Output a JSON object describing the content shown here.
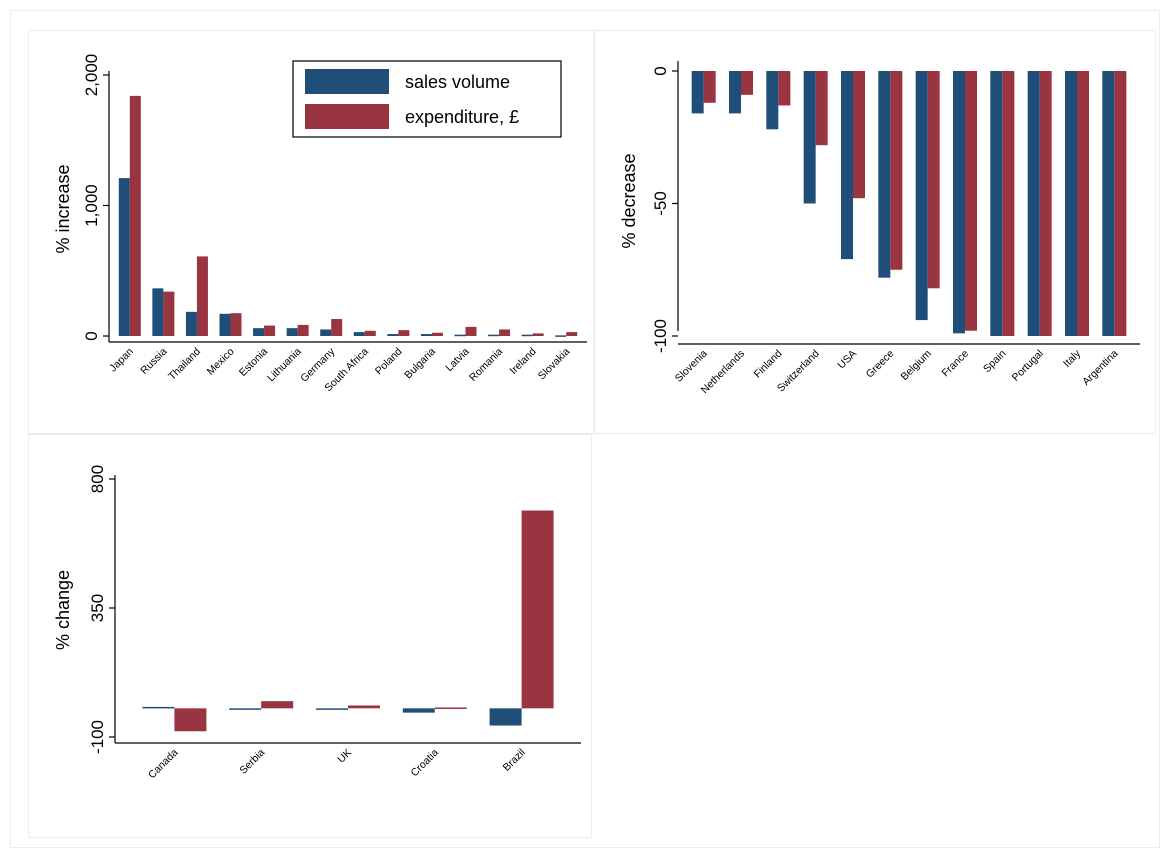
{
  "colors": {
    "sales_volume": "#1f4e79",
    "expenditure": "#993540",
    "axis": "#000000"
  },
  "legend": {
    "items": [
      "sales volume",
      "expenditure, £"
    ],
    "placement": "top-right of first chart"
  },
  "chart_data": [
    {
      "type": "bar",
      "ylabel": "% increase",
      "ylim": [
        0,
        2000
      ],
      "yticks": [
        "0",
        "1,000",
        "2,000"
      ],
      "ytick_values": [
        0,
        1000,
        2000
      ],
      "categories": [
        "Japan",
        "Russia",
        "Thailand",
        "Mexico",
        "Estonia",
        "Lithuania",
        "Germany",
        "South Africa",
        "Poland",
        "Bulgaria",
        "Latvia",
        "Romania",
        "Ireland",
        "Slovakia"
      ],
      "series": [
        {
          "name": "sales volume",
          "values": [
            1210,
            365,
            185,
            170,
            60,
            60,
            50,
            30,
            15,
            15,
            10,
            10,
            10,
            5
          ]
        },
        {
          "name": "expenditure, £",
          "values": [
            1840,
            340,
            610,
            175,
            80,
            85,
            130,
            40,
            45,
            25,
            70,
            50,
            20,
            30
          ]
        }
      ]
    },
    {
      "type": "bar",
      "ylabel": "% decrease",
      "ylim": [
        -100,
        0
      ],
      "yticks": [
        "0",
        "-50",
        "-100"
      ],
      "ytick_values": [
        0,
        -50,
        -100
      ],
      "categories": [
        "Slovenia",
        "Netherlands",
        "Finland",
        "Switzerland",
        "USA",
        "Greece",
        "Belgium",
        "France",
        "Spain",
        "Portugal",
        "Italy",
        "Argentina"
      ],
      "series": [
        {
          "name": "sales volume",
          "values": [
            -16,
            -16,
            -22,
            -50,
            -71,
            -78,
            -94,
            -99,
            -100,
            -100,
            -100,
            -100
          ]
        },
        {
          "name": "expenditure, £",
          "values": [
            -12,
            -9,
            -13,
            -28,
            -48,
            -75,
            -82,
            -98,
            -100,
            -100,
            -100,
            -100
          ]
        }
      ]
    },
    {
      "type": "bar",
      "ylabel": "% change",
      "ylim": [
        -100,
        800
      ],
      "yticks": [
        "-100",
        "350",
        "800"
      ],
      "ytick_values": [
        -100,
        350,
        800
      ],
      "categories": [
        "Canada",
        "Serbia",
        "UK",
        "Croatia",
        "Brazil"
      ],
      "series": [
        {
          "name": "sales volume",
          "values": [
            5,
            -3,
            -5,
            -15,
            -60
          ]
        },
        {
          "name": "expenditure, £",
          "values": [
            -80,
            25,
            10,
            3,
            690
          ]
        }
      ]
    }
  ]
}
